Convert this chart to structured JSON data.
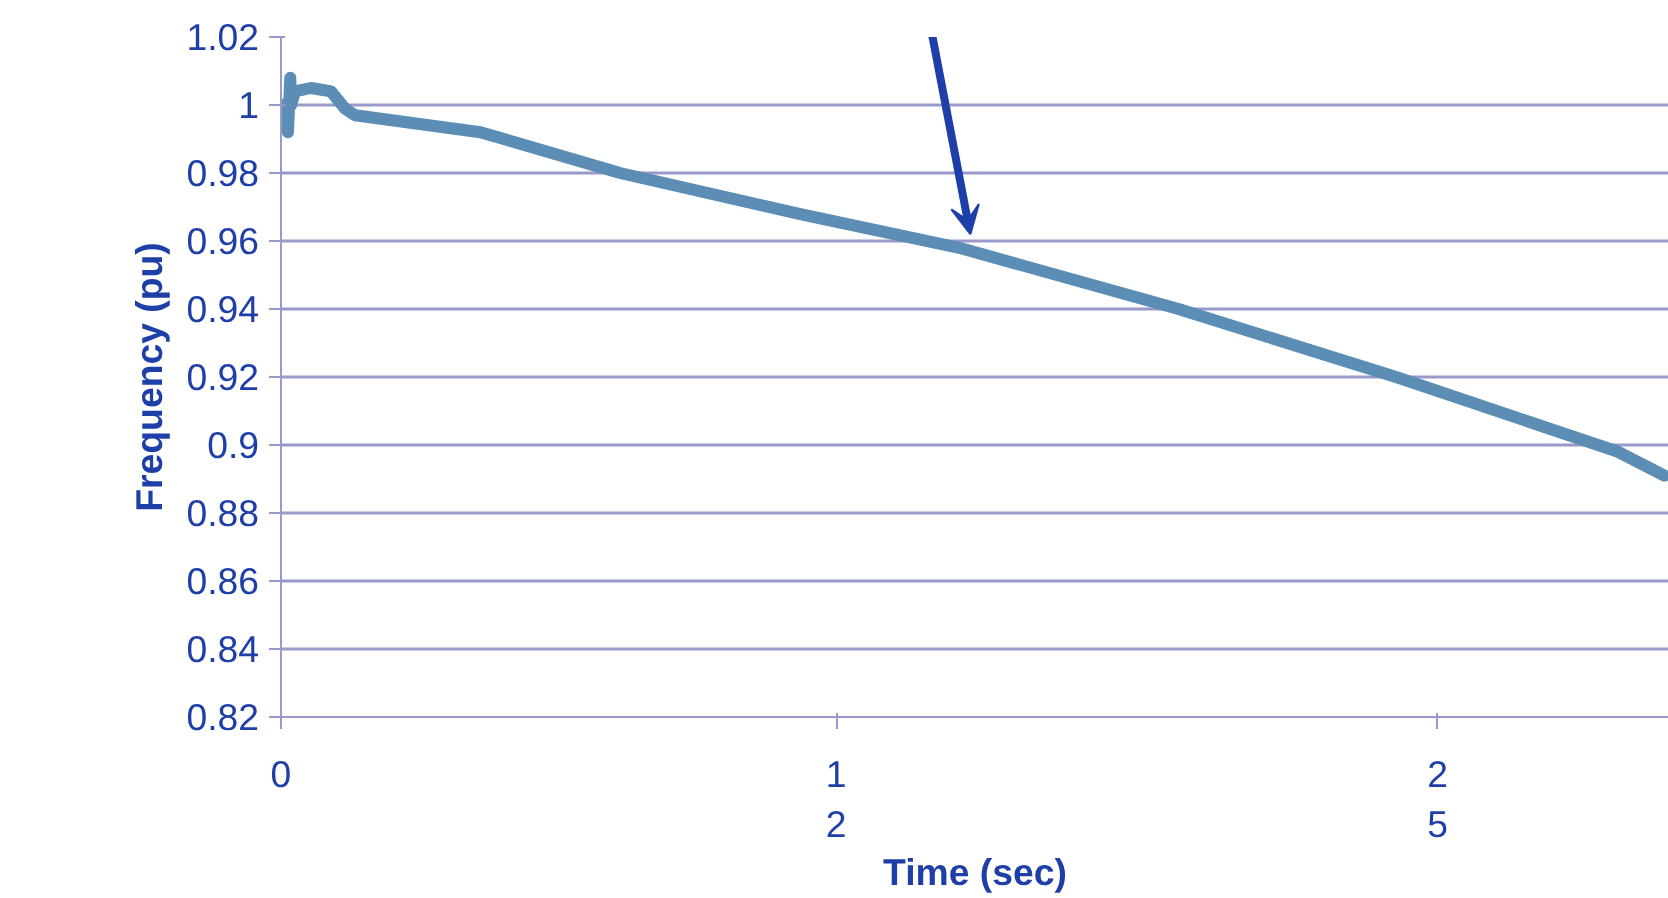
{
  "chart_data": {
    "type": "line",
    "xlabel": "Time (sec)",
    "ylabel": "Frequency (pu)",
    "x": [
      0,
      0.13,
      0.15,
      0.2,
      0.22,
      0.3,
      0.65,
      1.08,
      1.38,
      1.6,
      4.31,
      7.33,
      11.2,
      14.66,
      19.4,
      24.1,
      28.9,
      29.9
    ],
    "series": [
      {
        "color": "#5b8db5",
        "values": [
          1.0,
          1.0,
          0.992,
          1.008,
          1.0,
          1.004,
          1.005,
          1.004,
          0.999,
          0.997,
          0.992,
          0.98,
          0.968,
          0.958,
          0.94,
          0.92,
          0.898,
          0.891
        ]
      }
    ],
    "xlim": [
      0,
      30
    ],
    "xticks": [
      0,
      12,
      25
    ],
    "ylim": [
      0.82,
      1.02
    ],
    "yticks": [
      0.82,
      0.84,
      0.86,
      0.88,
      0.9,
      0.92,
      0.94,
      0.96,
      0.98,
      1,
      1.02
    ],
    "grid": "y",
    "line_style": "solid",
    "marker": "none"
  }
}
